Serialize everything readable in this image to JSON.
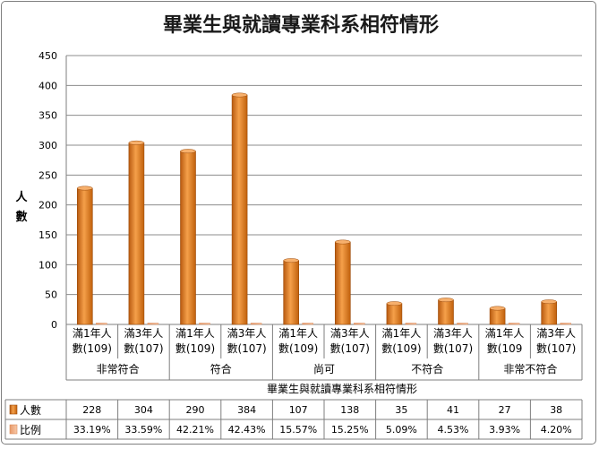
{
  "chart_data": {
    "type": "bar",
    "title": "畢業生與就讀專業科系相符情形",
    "ylabel": "人數",
    "xlabel": "畢業生與就讀專業科系相符情形",
    "ylim": [
      0,
      450
    ],
    "yticks": [
      0,
      50,
      100,
      150,
      200,
      250,
      300,
      350,
      400,
      450
    ],
    "grid": true,
    "groups": [
      "非常符合",
      "符合",
      "尚可",
      "不符合",
      "非常不符合"
    ],
    "categories": [
      [
        "滿1年人",
        "數(109)"
      ],
      [
        "滿3年人",
        "數(107)"
      ],
      [
        "滿1年人",
        "數(109)"
      ],
      [
        "滿3年人",
        "數(107)"
      ],
      [
        "滿1年人",
        "數(109)"
      ],
      [
        "滿3年人",
        "數(107)"
      ],
      [
        "滿1年人",
        "數(109)"
      ],
      [
        "滿3年人",
        "數(107)"
      ],
      [
        "滿1年人",
        "數(109"
      ],
      [
        "滿3年人",
        "數(107)"
      ]
    ],
    "series": [
      {
        "name": "人數",
        "color": "#e46c0a",
        "values": [
          228,
          304,
          290,
          384,
          107,
          138,
          35,
          41,
          27,
          38
        ],
        "labels": [
          "228",
          "304",
          "290",
          "384",
          "107",
          "138",
          "35",
          "41",
          "27",
          "38"
        ]
      },
      {
        "name": "比例",
        "color": "#f4b183",
        "values": [
          33.19,
          33.59,
          42.21,
          42.43,
          15.57,
          15.25,
          5.09,
          4.53,
          3.93,
          4.2
        ],
        "labels": [
          "33.19%",
          "33.59%",
          "42.21%",
          "42.43%",
          "15.57%",
          "15.25%",
          "5.09%",
          "4.53%",
          "3.93%",
          "4.20%"
        ]
      }
    ]
  }
}
